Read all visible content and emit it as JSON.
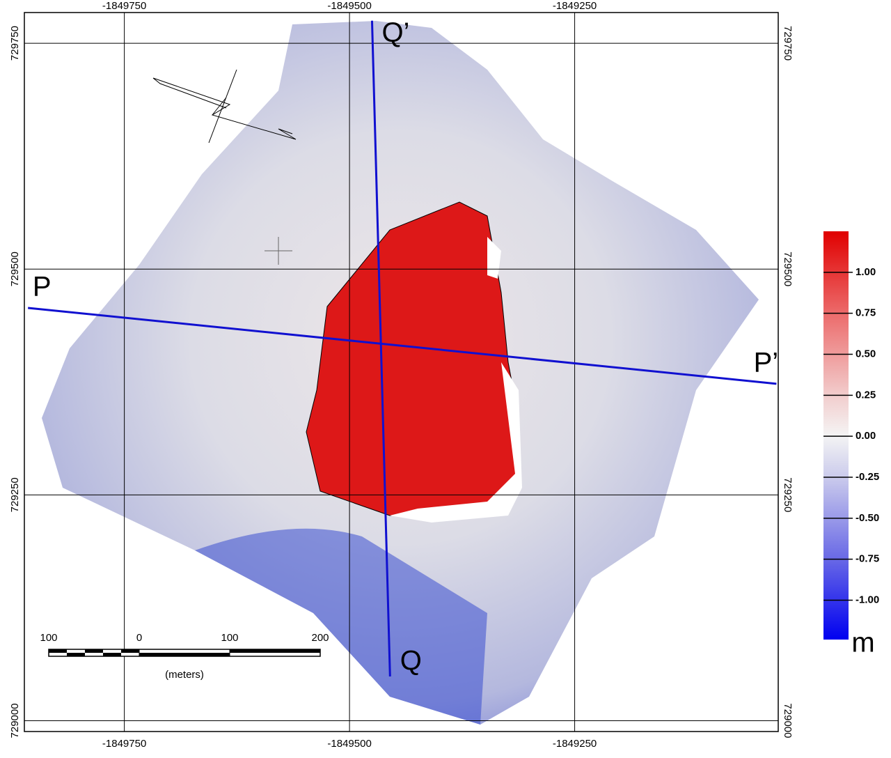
{
  "map": {
    "xlim": [
      -1849861,
      -1849024
    ],
    "xticks": [
      -1849750,
      -1849500,
      -1849250
    ],
    "ylim": [
      728988,
      729784
    ],
    "yticks": [
      729000,
      729250,
      729500,
      729750
    ],
    "profiles": [
      {
        "name": "P",
        "end_name": "P’",
        "x": [
          -1849857,
          -1849026
        ],
        "y": [
          729457,
          729373
        ]
      },
      {
        "name": "Q",
        "end_name": "Q’",
        "x": [
          -1849455,
          -1849475
        ],
        "y": [
          729049,
          729775
        ]
      }
    ],
    "colorbar": {
      "unit": "m",
      "lim": [
        -1.24,
        1.25
      ],
      "ticks": [
        {
          "value": 1,
          "label": "1.00"
        },
        {
          "value": 0.75,
          "label": "0.75"
        },
        {
          "value": 0.5,
          "label": "0.50"
        },
        {
          "value": 0.25,
          "label": "0.25"
        },
        {
          "value": 0,
          "label": "0.00"
        },
        {
          "value": -0.25,
          "label": "-0.25"
        },
        {
          "value": -0.5,
          "label": "-0.50"
        },
        {
          "value": -0.75,
          "label": "-0.75"
        },
        {
          "value": -1,
          "label": "-1.00"
        }
      ]
    },
    "scale_bar": {
      "label": "(meters)",
      "ticks": [
        {
          "value": -100,
          "label": "100"
        },
        0,
        100,
        200
      ]
    }
  }
}
